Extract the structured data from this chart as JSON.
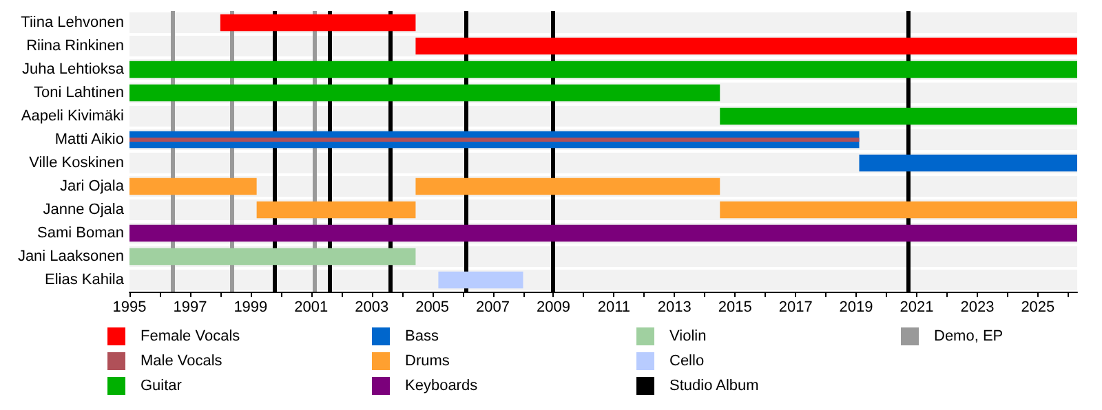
{
  "chart_data": {
    "type": "bar",
    "orientation": "horizontal",
    "categories": [
      "Tiina Lehvonen",
      "Riina Rinkinen",
      "Juha Lehtioksa",
      "Toni Lahtinen",
      "Aapeli Kivimäki",
      "Matti Aikio",
      "Ville Koskinen",
      "Jari Ojala",
      "Janne Ojala",
      "Sami Boman",
      "Jani Laaksonen",
      "Elias Kahila"
    ],
    "series": [
      {
        "name": "Female Vocals",
        "color": "#ff0000",
        "base": [
          1998.0,
          2004.45,
          null,
          null,
          null,
          null,
          null,
          null,
          null,
          null,
          null,
          null
        ],
        "values": [
          6.45,
          21.85,
          null,
          null,
          null,
          null,
          null,
          null,
          null,
          null,
          null,
          null
        ]
      },
      {
        "name": "Male Vocals",
        "color": "#b05058",
        "base": [
          null,
          null,
          null,
          null,
          null,
          1995,
          null,
          null,
          null,
          null,
          null,
          null
        ],
        "values": [
          null,
          null,
          null,
          null,
          null,
          24.1,
          null,
          null,
          null,
          null,
          null,
          null
        ]
      },
      {
        "name": "Guitar",
        "color": "#00b000",
        "base": [
          null,
          null,
          1995,
          1995,
          2014.5,
          null,
          null,
          null,
          null,
          null,
          null,
          null
        ],
        "values": [
          null,
          null,
          31.3,
          19.5,
          11.8,
          null,
          null,
          null,
          null,
          null,
          null,
          null
        ]
      },
      {
        "name": "Bass",
        "color": "#0066cc",
        "base": [
          null,
          null,
          null,
          null,
          null,
          1995,
          2019.1,
          null,
          null,
          null,
          null,
          null
        ],
        "values": [
          null,
          null,
          null,
          null,
          null,
          24.1,
          7.2,
          null,
          null,
          null,
          null,
          null
        ]
      },
      {
        "name": "Drums",
        "color": "#ffa030",
        "base": [
          null,
          null,
          null,
          null,
          null,
          null,
          null,
          1995,
          1999.2,
          null,
          null,
          null
        ],
        "values": [
          null,
          null,
          null,
          null,
          null,
          null,
          null,
          4.2,
          5.25,
          null,
          null,
          null
        ]
      },
      {
        "color": "#ffa030",
        "base": [
          null,
          null,
          null,
          null,
          null,
          null,
          null,
          2004.45,
          2014.5,
          null,
          null,
          null
        ],
        "values": [
          null,
          null,
          null,
          null,
          null,
          null,
          null,
          10.05,
          11.8,
          null,
          null,
          null
        ]
      },
      {
        "name": "Keyboards",
        "color": "#7b007b",
        "base": [
          null,
          null,
          null,
          null,
          null,
          null,
          null,
          null,
          null,
          1995,
          null,
          null
        ],
        "values": [
          null,
          null,
          null,
          null,
          null,
          null,
          null,
          null,
          null,
          31.3,
          null,
          null
        ]
      },
      {
        "name": "Violin",
        "color": "#a0d0a0",
        "base": [
          null,
          null,
          null,
          null,
          null,
          null,
          null,
          null,
          null,
          null,
          1995,
          null
        ],
        "values": [
          null,
          null,
          null,
          null,
          null,
          null,
          null,
          null,
          null,
          null,
          9.45,
          null
        ]
      },
      {
        "name": "Cello",
        "color": "#b8ccff",
        "base": [
          null,
          null,
          null,
          null,
          null,
          null,
          null,
          null,
          null,
          null,
          null,
          2005.2
        ],
        "values": [
          null,
          null,
          null,
          null,
          null,
          null,
          null,
          null,
          null,
          null,
          null,
          2.8
        ]
      }
    ],
    "ref_lines": [
      {
        "axis": "x",
        "value": 1999.8,
        "label": "Studio Album",
        "color": "#000000"
      },
      {
        "axis": "x",
        "value": 2001.6,
        "label": null,
        "color": "#000000"
      },
      {
        "axis": "x",
        "value": 2003.6,
        "label": null,
        "color": "#000000"
      },
      {
        "axis": "x",
        "value": 2006.1,
        "label": null,
        "color": "#000000"
      },
      {
        "axis": "x",
        "value": 2009.0,
        "label": null,
        "color": "#000000"
      },
      {
        "axis": "x",
        "value": 2020.7,
        "label": null,
        "color": "#000000"
      },
      {
        "axis": "x",
        "value": 1996.4,
        "label": "Demo, EP",
        "color": "#999999"
      },
      {
        "axis": "x",
        "value": 1998.4,
        "label": null,
        "color": "#999999"
      },
      {
        "axis": "x",
        "value": 2001.1,
        "label": null,
        "color": "#999999"
      }
    ],
    "xlim": [
      1995,
      2026.3
    ],
    "xticks": [
      1995,
      {
        "value": 1996,
        "label": null
      },
      1997,
      {
        "value": 1998,
        "label": null
      },
      1999,
      {
        "value": 2000,
        "label": null
      },
      2001,
      {
        "value": 2002,
        "label": null
      },
      2003,
      {
        "value": 2004,
        "label": null
      },
      2005,
      {
        "value": 2006,
        "label": null
      },
      2007,
      {
        "value": 2008,
        "label": null
      },
      2009,
      {
        "value": 2010,
        "label": null
      },
      2011,
      {
        "value": 2012,
        "label": null
      },
      2013,
      {
        "value": 2014,
        "label": null
      },
      2015,
      {
        "value": 2016,
        "label": null
      },
      2017,
      {
        "value": 2018,
        "label": null
      },
      2019,
      {
        "value": 2020,
        "label": null
      },
      2021,
      {
        "value": 2022,
        "label": null
      },
      2023,
      {
        "value": 2024,
        "label": null
      },
      2025,
      {
        "value": 2026,
        "label": null
      }
    ],
    "legend": "bottom"
  }
}
